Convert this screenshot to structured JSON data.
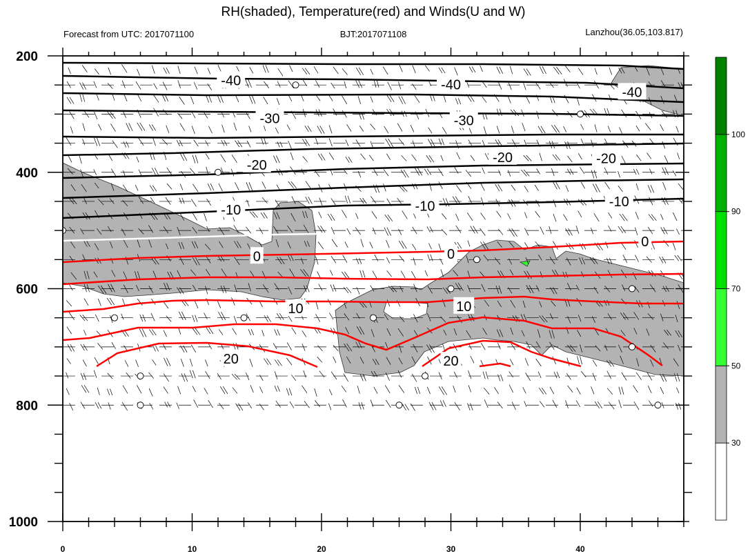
{
  "title": "RH(shaded), Temperature(red) and Winds(U and W)",
  "subtitle_left": "Forecast from UTC: 2017071100",
  "subtitle_center": "BJT:2017071108",
  "subtitle_right": "Lanzhou(36.05,103.817)",
  "colors": {
    "temperature_warm": "#ff0000",
    "temperature_cold": "#000000",
    "zero_isotherm": "#ffffff",
    "rh_30_50": "#b3b3b3",
    "rh_50_70": "#33ff33",
    "rh_70_90": "#00e000",
    "rh_90_100": "#00b000",
    "rh_100_plus": "#008000"
  },
  "chart_data": {
    "type": "contour",
    "x_axis": {
      "label": "",
      "range": [
        0,
        48
      ],
      "major_ticks": [
        0,
        10,
        20,
        30,
        40
      ],
      "minor_step": 2,
      "units": "forecast hour"
    },
    "y_axis": {
      "label": "",
      "range": [
        200,
        1000
      ],
      "inverted": true,
      "major_ticks": [
        200,
        400,
        600,
        800,
        1000
      ],
      "minor_ticks": [
        250,
        300,
        350,
        450,
        500,
        550,
        650,
        700,
        750,
        850,
        900,
        950
      ],
      "units": "hPa"
    },
    "grid": false,
    "temperature_contour_labels": [
      {
        "value": "-40",
        "x": 13,
        "y": 242
      },
      {
        "value": "-40",
        "x": 30,
        "y": 249
      },
      {
        "value": "-40",
        "x": 44,
        "y": 262
      },
      {
        "value": "-30",
        "x": 16,
        "y": 307
      },
      {
        "value": "-30",
        "x": 31,
        "y": 311
      },
      {
        "value": "-20",
        "x": 15,
        "y": 387
      },
      {
        "value": "-20",
        "x": 34,
        "y": 374
      },
      {
        "value": "-20",
        "x": 42,
        "y": 376
      },
      {
        "value": "-10",
        "x": 13,
        "y": 464
      },
      {
        "value": "-10",
        "x": 28,
        "y": 458
      },
      {
        "value": "-10",
        "x": 43,
        "y": 450
      },
      {
        "value": "0",
        "x": 15,
        "y": 544
      },
      {
        "value": "0",
        "x": 30,
        "y": 540
      },
      {
        "value": "0",
        "x": 45,
        "y": 519
      },
      {
        "value": "10",
        "x": 18,
        "y": 634
      },
      {
        "value": "10",
        "x": 31,
        "y": 630
      },
      {
        "value": "20",
        "x": 13,
        "y": 720
      },
      {
        "value": "20",
        "x": 30,
        "y": 724
      }
    ],
    "colorbar": {
      "labels": [
        "30",
        "50",
        "70",
        "90",
        "100"
      ],
      "levels": [
        30,
        50,
        70,
        90,
        100
      ],
      "colors": [
        "#ffffff",
        "#b3b3b3",
        "#33ff33",
        "#00e000",
        "#00b000",
        "#008000"
      ]
    }
  }
}
